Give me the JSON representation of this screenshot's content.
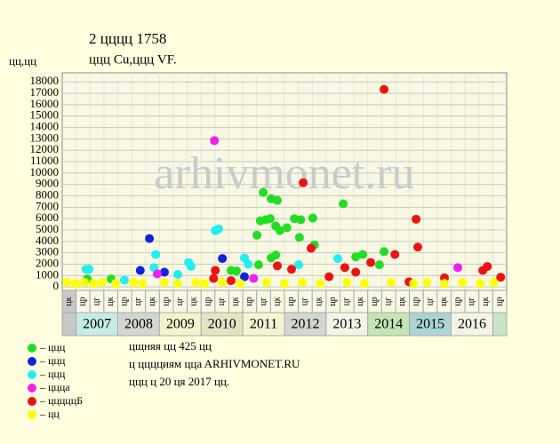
{
  "chart_data": {
    "type": "scatter",
    "title": "2 цццц 1758",
    "subtitle": "ццц Cu,ццц VF.",
    "y_label": "цц,цц",
    "watermark": "arhivmonet.ru",
    "xlim": [
      2006.667,
      2017.333
    ],
    "ylim": [
      -300,
      18800
    ],
    "yticks": [
      0,
      1000,
      2000,
      3000,
      4000,
      5000,
      6000,
      7000,
      8000,
      9000,
      10000,
      11000,
      12000,
      13000,
      14000,
      15000,
      16000,
      17000,
      18000
    ],
    "grid": true,
    "x_sublabels": [
      "цк",
      "цр",
      "цг",
      "цк",
      "цр",
      "цг",
      "цк",
      "цр",
      "цг",
      "цк",
      "цр",
      "цг",
      "цк",
      "цр",
      "цг",
      "цк",
      "цр",
      "цг",
      "цк",
      "цр",
      "цг",
      "цк",
      "цр",
      "цг",
      "цк",
      "цр",
      "цг",
      "цк",
      "цр",
      "цг",
      "цк",
      "цр"
    ],
    "x_groups": [
      {
        "label": "2007",
        "color": "#c4ece4"
      },
      {
        "label": "2008",
        "color": "#d4d4d0"
      },
      {
        "label": "2009",
        "color": "#f4f4cc"
      },
      {
        "label": "2010",
        "color": "#e4e4c4"
      },
      {
        "label": "2011",
        "color": "#f4f4d4"
      },
      {
        "label": "2012",
        "color": "#d4d4d0"
      },
      {
        "label": "2013",
        "color": "#f4f4e4"
      },
      {
        "label": "2014",
        "color": "#c4e4b4"
      },
      {
        "label": "2015",
        "color": "#acd4d4"
      },
      {
        "label": "2016",
        "color": "#f4f4e4"
      }
    ],
    "series": [
      {
        "name": "– ццц",
        "color": "#22dd22",
        "x": [
          2011.49,
          2011.68,
          2011.83,
          2011.55,
          2011.66,
          2011.42,
          2011.79,
          2011.89,
          2012.06,
          2011.34,
          2012.24,
          2012.39,
          2012.68,
          2012.36,
          2012.72,
          2013.41,
          2011.79,
          2011.68,
          2013.71,
          2013.88,
          2014.39,
          2011.38,
          2010.72,
          2010.85,
          2014.28,
          2007.84,
          2007.27
        ],
        "values": [
          8300,
          7750,
          7600,
          5900,
          6000,
          5800,
          5350,
          4950,
          5200,
          4550,
          6000,
          5900,
          6050,
          4350,
          3700,
          7300,
          2800,
          2550,
          2650,
          2850,
          3100,
          1950,
          1450,
          1400,
          1950,
          700,
          700
        ]
      },
      {
        "name": "– ццц",
        "color": "#1122dd",
        "x": [
          2008.76,
          2010.51,
          2008.54,
          2009.12,
          2011.04
        ],
        "values": [
          4250,
          2500,
          1450,
          1300,
          900
        ]
      },
      {
        "name": "– ццц",
        "color": "#22eeee",
        "x": [
          2007.24,
          2007.31,
          2008.91,
          2008.87,
          2009.7,
          2009.76,
          2010.34,
          2010.42,
          2011.04,
          2011.13,
          2013.28,
          2012.34,
          2009.44,
          2008.16
        ],
        "values": [
          1550,
          1550,
          2850,
          1700,
          2150,
          1800,
          4950,
          5100,
          2550,
          2000,
          2500,
          1950,
          1100,
          600
        ]
      },
      {
        "name": "– цццa",
        "color": "#ee22ee",
        "x": [
          2010.32,
          2008.95,
          2016.16,
          2011.26
        ],
        "values": [
          12850,
          1150,
          1700,
          750
        ]
      },
      {
        "name": "– цццццБ",
        "color": "#ee1111",
        "x": [
          2014.39,
          2012.45,
          2015.16,
          2015.2,
          2012.64,
          2014.65,
          2010.34,
          2011.83,
          2012.17,
          2013.45,
          2014.07,
          2016.87,
          2016.76,
          2017.19,
          2014.99,
          2015.84,
          2013.07,
          2013.71,
          2010.3,
          2010.72
        ],
        "values": [
          17350,
          9150,
          5950,
          3500,
          3400,
          2850,
          1450,
          1850,
          1550,
          1700,
          2150,
          1800,
          1450,
          850,
          450,
          800,
          900,
          1300,
          750,
          550
        ]
      },
      {
        "name": "– цц",
        "color": "#ffff00",
        "x": [
          2006.78,
          2006.99,
          2007.2,
          2007.42,
          2007.63,
          2007.95,
          2008.38,
          2008.59,
          2009.12,
          2009.44,
          2009.87,
          2010.08,
          2010.51,
          2010.94,
          2011.57,
          2012.0,
          2012.43,
          2012.86,
          2013.5,
          2013.92,
          2014.56,
          2015.1,
          2015.42,
          2015.84,
          2016.27,
          2016.7,
          2017.02
        ],
        "values": [
          400,
          300,
          400,
          300,
          400,
          300,
          400,
          300,
          400,
          300,
          400,
          300,
          400,
          300,
          400,
          300,
          400,
          300,
          400,
          300,
          400,
          300,
          400,
          300,
          400,
          300,
          400
        ]
      }
    ],
    "footer": [
      "цщняя цц 425 цц",
      "ц цццциям ццa ARHIVMONET.RU",
      "ццц ц 20 ця 2017 цц."
    ]
  }
}
